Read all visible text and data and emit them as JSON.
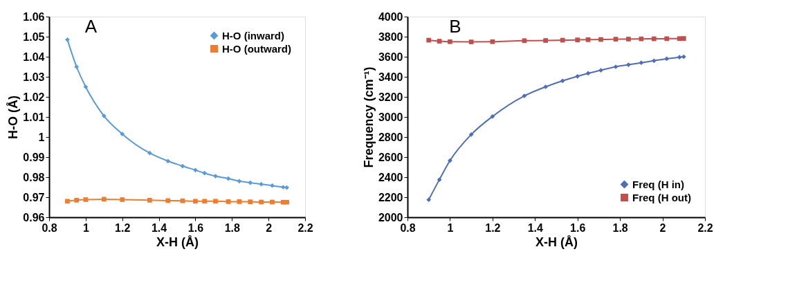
{
  "chart_data": [
    {
      "type": "line",
      "title": "A",
      "xlabel": "X-H (Å)",
      "ylabel": "H-O (Å)",
      "xlim": [
        0.8,
        2.2
      ],
      "xticks": [
        0.8,
        1,
        1.2,
        1.4,
        1.6,
        1.8,
        2,
        2.2
      ],
      "ylim": [
        0.96,
        1.06
      ],
      "yticks": [
        0.96,
        0.97,
        0.98,
        0.99,
        1,
        1.01,
        1.02,
        1.03,
        1.04,
        1.05,
        1.06
      ],
      "grid": false,
      "legend": "top right",
      "line_style": "solid",
      "x": [
        0.9,
        0.95,
        1.0,
        1.1,
        1.2,
        1.35,
        1.45,
        1.53,
        1.6,
        1.65,
        1.71,
        1.78,
        1.84,
        1.9,
        1.96,
        2.02,
        2.08,
        2.1
      ],
      "series": [
        {
          "name": "H-O (inward)",
          "color": "#5b9bd5",
          "marker": "diamond",
          "values": [
            1.0485,
            1.035,
            1.025,
            1.0105,
            1.0015,
            0.992,
            0.988,
            0.9855,
            0.9835,
            0.982,
            0.9805,
            0.9793,
            0.978,
            0.9772,
            0.9765,
            0.9758,
            0.975,
            0.9748
          ]
        },
        {
          "name": "H-O (outward)",
          "color": "#ed7d31",
          "marker": "square",
          "values": [
            0.968,
            0.9685,
            0.9688,
            0.969,
            0.9688,
            0.9685,
            0.9683,
            0.9682,
            0.968,
            0.968,
            0.968,
            0.9678,
            0.9678,
            0.9677,
            0.9676,
            0.9676,
            0.9675,
            0.9675
          ]
        }
      ]
    },
    {
      "type": "line",
      "title": "B",
      "xlabel": "X-H (Å)",
      "ylabel": "Frequency (cm⁻¹)",
      "xlim": [
        0.8,
        2.2
      ],
      "xticks": [
        0.8,
        1,
        1.2,
        1.4,
        1.6,
        1.8,
        2,
        2.2
      ],
      "ylim": [
        2000,
        4000
      ],
      "yticks": [
        2000,
        2200,
        2400,
        2600,
        2800,
        3000,
        3200,
        3400,
        3600,
        3800,
        4000
      ],
      "grid": false,
      "legend": "bottom right",
      "line_style": "solid",
      "x": [
        0.9,
        0.95,
        1.0,
        1.1,
        1.2,
        1.35,
        1.45,
        1.53,
        1.6,
        1.65,
        1.71,
        1.78,
        1.84,
        1.9,
        1.96,
        2.02,
        2.08,
        2.1
      ],
      "series": [
        {
          "name": "Freq (H in)",
          "color": "#4f6db8",
          "marker": "diamond",
          "values": [
            2175,
            2375,
            2565,
            2825,
            3005,
            3210,
            3300,
            3360,
            3405,
            3435,
            3465,
            3500,
            3520,
            3540,
            3560,
            3580,
            3595,
            3600
          ]
        },
        {
          "name": "Freq (H out)",
          "color": "#c0504d",
          "marker": "square",
          "values": [
            3765,
            3755,
            3750,
            3748,
            3750,
            3760,
            3762,
            3765,
            3768,
            3770,
            3772,
            3775,
            3776,
            3778,
            3779,
            3780,
            3781,
            3782
          ]
        }
      ]
    }
  ]
}
